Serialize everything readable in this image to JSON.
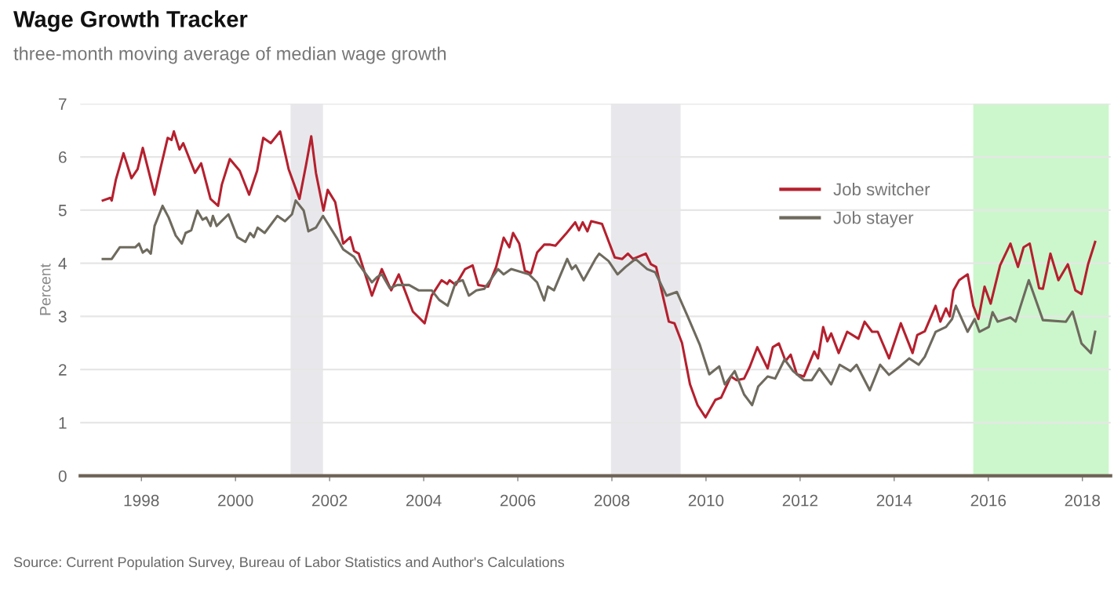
{
  "chart_data": {
    "type": "line",
    "title": "Wage Growth Tracker",
    "subtitle": "three-month moving average of median wage growth",
    "ylabel": "Percent",
    "annotations": [
      "Source: Current Population Survey, Bureau of Labor Statistics and Author's Calculations"
    ],
    "xlim": [
      1996.7,
      2018.6
    ],
    "xticks": [
      1998,
      2000,
      2002,
      2004,
      2006,
      2008,
      2010,
      2012,
      2014,
      2016,
      2018
    ],
    "ylim": [
      0,
      7
    ],
    "yticks": [
      0,
      1,
      2,
      3,
      4,
      5,
      6,
      7
    ],
    "grid": "y",
    "legend": "upper right",
    "line_style": "solid",
    "marker": "none",
    "bands": [
      {
        "axis": "x",
        "from": 2001.17,
        "to": 2001.86,
        "color": "#e8e8ec"
      },
      {
        "axis": "x",
        "from": 2007.98,
        "to": 2009.46,
        "color": "#e8e8ec"
      },
      {
        "axis": "x",
        "from": 2015.68,
        "to": 2018.56,
        "color": "#ccf7cc"
      }
    ],
    "series": [
      {
        "name": "Job switcher",
        "color": "#b5202e",
        "x": [
          1997.18,
          1997.34,
          1997.37,
          1997.46,
          1997.62,
          1997.79,
          1997.92,
          1998.03,
          1998.28,
          1998.41,
          1998.56,
          1998.64,
          1998.69,
          1998.81,
          1998.89,
          1999.14,
          1999.27,
          1999.47,
          1999.63,
          1999.71,
          1999.88,
          2000.09,
          2000.29,
          2000.46,
          2000.59,
          2000.75,
          2000.95,
          2001.13,
          2001.36,
          2001.5,
          2001.61,
          2001.71,
          2001.87,
          2001.96,
          2002.12,
          2002.29,
          2002.44,
          2002.52,
          2002.62,
          2002.9,
          2003.11,
          2003.31,
          2003.47,
          2003.77,
          2004.02,
          2004.17,
          2004.38,
          2004.5,
          2004.55,
          2004.68,
          2004.88,
          2005.04,
          2005.16,
          2005.37,
          2005.54,
          2005.7,
          2005.82,
          2005.9,
          2006.03,
          2006.15,
          2006.28,
          2006.41,
          2006.56,
          2006.69,
          2006.8,
          2007.02,
          2007.22,
          2007.3,
          2007.38,
          2007.48,
          2007.56,
          2007.79,
          2008.06,
          2008.22,
          2008.34,
          2008.45,
          2008.72,
          2008.83,
          2008.94,
          2009.21,
          2009.33,
          2009.49,
          2009.66,
          2009.82,
          2009.99,
          2010.2,
          2010.32,
          2010.53,
          2010.65,
          2010.81,
          2010.93,
          2011.09,
          2011.31,
          2011.42,
          2011.55,
          2011.69,
          2011.8,
          2011.93,
          2012.08,
          2012.3,
          2012.38,
          2012.49,
          2012.58,
          2012.66,
          2012.82,
          2013.0,
          2013.24,
          2013.37,
          2013.53,
          2013.65,
          2013.89,
          2014.14,
          2014.39,
          2014.49,
          2014.65,
          2014.88,
          2014.98,
          2015.1,
          2015.18,
          2015.26,
          2015.38,
          2015.56,
          2015.68,
          2015.79,
          2015.92,
          2016.05,
          2016.25,
          2016.47,
          2016.63,
          2016.75,
          2016.88,
          2017.08,
          2017.16,
          2017.32,
          2017.49,
          2017.69,
          2017.85,
          2017.98,
          2018.12,
          2018.27
        ],
        "values": [
          5.18,
          5.23,
          5.18,
          5.58,
          6.07,
          5.6,
          5.77,
          6.17,
          5.29,
          5.8,
          6.36,
          6.32,
          6.48,
          6.14,
          6.26,
          5.7,
          5.88,
          5.21,
          5.08,
          5.48,
          5.96,
          5.74,
          5.29,
          5.74,
          6.36,
          6.26,
          6.48,
          5.77,
          5.21,
          5.85,
          6.39,
          5.7,
          4.99,
          5.38,
          5.15,
          4.37,
          4.49,
          4.23,
          4.18,
          3.39,
          3.89,
          3.49,
          3.79,
          3.09,
          2.87,
          3.39,
          3.68,
          3.61,
          3.68,
          3.59,
          3.89,
          3.96,
          3.59,
          3.56,
          3.93,
          4.48,
          4.3,
          4.57,
          4.37,
          3.86,
          3.81,
          4.2,
          4.35,
          4.35,
          4.33,
          4.55,
          4.77,
          4.62,
          4.77,
          4.6,
          4.79,
          4.74,
          4.11,
          4.08,
          4.18,
          4.08,
          4.18,
          3.98,
          3.93,
          2.9,
          2.87,
          2.5,
          1.72,
          1.33,
          1.1,
          1.43,
          1.47,
          1.87,
          1.8,
          1.83,
          2.05,
          2.42,
          2.02,
          2.42,
          2.49,
          2.16,
          2.28,
          1.91,
          1.87,
          2.34,
          2.21,
          2.8,
          2.53,
          2.68,
          2.31,
          2.71,
          2.58,
          2.9,
          2.71,
          2.71,
          2.21,
          2.87,
          2.31,
          2.65,
          2.72,
          3.2,
          2.9,
          3.15,
          3.0,
          3.49,
          3.68,
          3.79,
          3.2,
          2.95,
          3.56,
          3.24,
          3.96,
          4.37,
          3.93,
          4.3,
          4.37,
          3.53,
          3.52,
          4.18,
          3.68,
          3.98,
          3.49,
          3.42,
          3.98,
          4.4
        ]
      },
      {
        "name": "Job stayer",
        "color": "#6e6a5e",
        "x": [
          1997.18,
          1997.37,
          1997.54,
          1997.87,
          1997.95,
          1998.03,
          1998.12,
          1998.2,
          1998.28,
          1998.45,
          1998.58,
          1998.73,
          1998.86,
          1998.94,
          1999.06,
          1999.19,
          1999.3,
          1999.38,
          1999.47,
          1999.52,
          1999.6,
          1999.85,
          2000.04,
          2000.21,
          2000.31,
          2000.39,
          2000.47,
          2000.62,
          2000.89,
          2001.05,
          2001.2,
          2001.28,
          2001.45,
          2001.55,
          2001.71,
          2001.86,
          2002.15,
          2002.29,
          2002.52,
          2002.62,
          2002.9,
          2003.01,
          2003.11,
          2003.28,
          2003.44,
          2003.69,
          2003.89,
          2004.17,
          2004.33,
          2004.51,
          2004.68,
          2004.83,
          2004.96,
          2005.12,
          2005.29,
          2005.58,
          2005.7,
          2005.86,
          2006.24,
          2006.41,
          2006.56,
          2006.64,
          2006.77,
          2007.05,
          2007.15,
          2007.23,
          2007.4,
          2007.65,
          2007.73,
          2007.93,
          2008.12,
          2008.29,
          2008.5,
          2008.75,
          2008.92,
          2009.16,
          2009.38,
          2009.61,
          2009.87,
          2010.07,
          2010.28,
          2010.4,
          2010.61,
          2010.81,
          2010.98,
          2011.11,
          2011.31,
          2011.47,
          2011.67,
          2011.85,
          2012.08,
          2012.25,
          2012.41,
          2012.66,
          2012.84,
          2013.07,
          2013.2,
          2013.48,
          2013.7,
          2013.89,
          2014.11,
          2014.32,
          2014.52,
          2014.65,
          2014.88,
          2015.1,
          2015.23,
          2015.31,
          2015.56,
          2015.71,
          2015.81,
          2016.01,
          2016.09,
          2016.2,
          2016.47,
          2016.58,
          2016.86,
          2017.16,
          2017.65,
          2017.79,
          2017.98,
          2018.18,
          2018.27
        ],
        "values": [
          4.08,
          4.08,
          4.3,
          4.3,
          4.37,
          4.2,
          4.26,
          4.18,
          4.7,
          5.08,
          4.86,
          4.52,
          4.37,
          4.57,
          4.62,
          4.99,
          4.82,
          4.86,
          4.7,
          4.89,
          4.7,
          4.92,
          4.49,
          4.4,
          4.57,
          4.49,
          4.67,
          4.57,
          4.89,
          4.79,
          4.92,
          5.18,
          4.99,
          4.6,
          4.67,
          4.89,
          4.48,
          4.26,
          4.12,
          3.98,
          3.64,
          3.74,
          3.79,
          3.53,
          3.59,
          3.59,
          3.49,
          3.49,
          3.31,
          3.2,
          3.64,
          3.68,
          3.39,
          3.49,
          3.52,
          3.89,
          3.79,
          3.89,
          3.79,
          3.64,
          3.3,
          3.56,
          3.49,
          4.08,
          3.89,
          3.96,
          3.68,
          4.08,
          4.18,
          4.04,
          3.79,
          3.93,
          4.08,
          3.89,
          3.83,
          3.39,
          3.46,
          3.0,
          2.46,
          1.91,
          2.06,
          1.72,
          1.97,
          1.53,
          1.33,
          1.68,
          1.87,
          1.83,
          2.19,
          1.97,
          1.8,
          1.8,
          2.02,
          1.72,
          2.09,
          1.97,
          2.09,
          1.61,
          2.09,
          1.9,
          2.05,
          2.21,
          2.09,
          2.24,
          2.71,
          2.8,
          2.95,
          3.2,
          2.71,
          2.95,
          2.71,
          2.8,
          3.08,
          2.9,
          2.98,
          2.9,
          3.68,
          2.93,
          2.9,
          3.09,
          2.49,
          2.31,
          2.71
        ]
      }
    ]
  }
}
